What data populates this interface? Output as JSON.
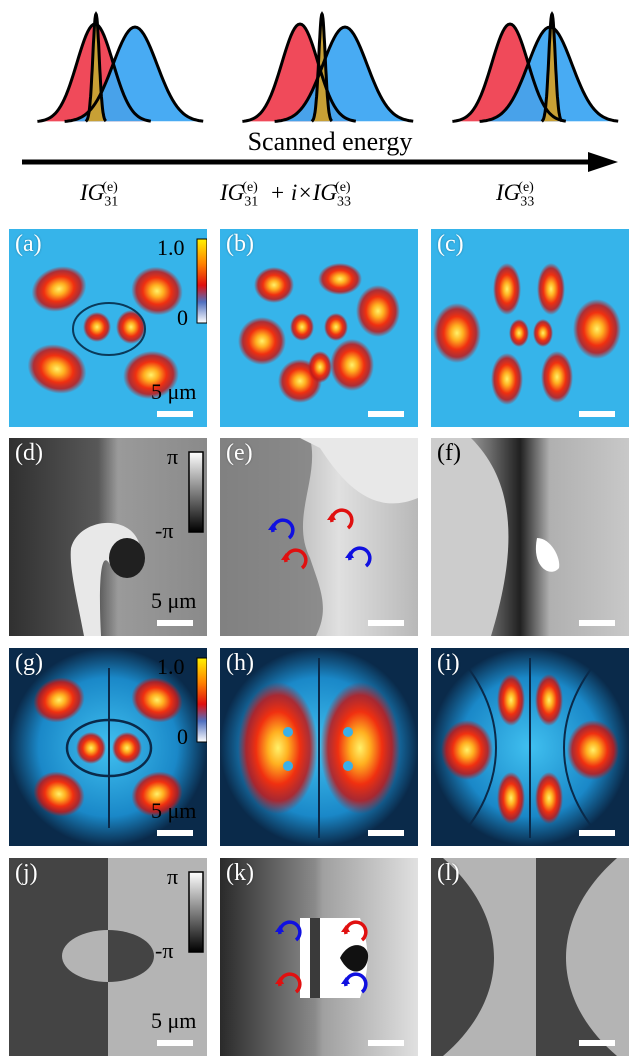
{
  "arrow_label": "Scanned energy",
  "column_captions": [
    {
      "pre": "IG",
      "sub": "31",
      "sup": "(e)",
      "extra": ""
    },
    {
      "pre": "IG",
      "sub": "31",
      "sup": "(e)",
      "extra": "+ i×IG",
      "sub2": "33",
      "sup2": "(e)"
    },
    {
      "pre": "IG",
      "sub": "33",
      "sup": "(e)",
      "extra": ""
    }
  ],
  "panels": [
    "(a)",
    "(b)",
    "(c)",
    "(d)",
    "(e)",
    "(f)",
    "(g)",
    "(h)",
    "(i)",
    "(j)",
    "(k)",
    "(l)"
  ],
  "intensity_colorbar": {
    "max": "1.0",
    "min": "0"
  },
  "phase_colorbar": {
    "max": "π",
    "min": "-π"
  },
  "scale_label": "5 μm",
  "colors": {
    "red_gaussian": "#f04a5a",
    "blue_gaussian": "#3ea6f2",
    "overlap": "#c8a035",
    "vortex_red": "#e01010",
    "vortex_blue": "#1010e0"
  }
}
